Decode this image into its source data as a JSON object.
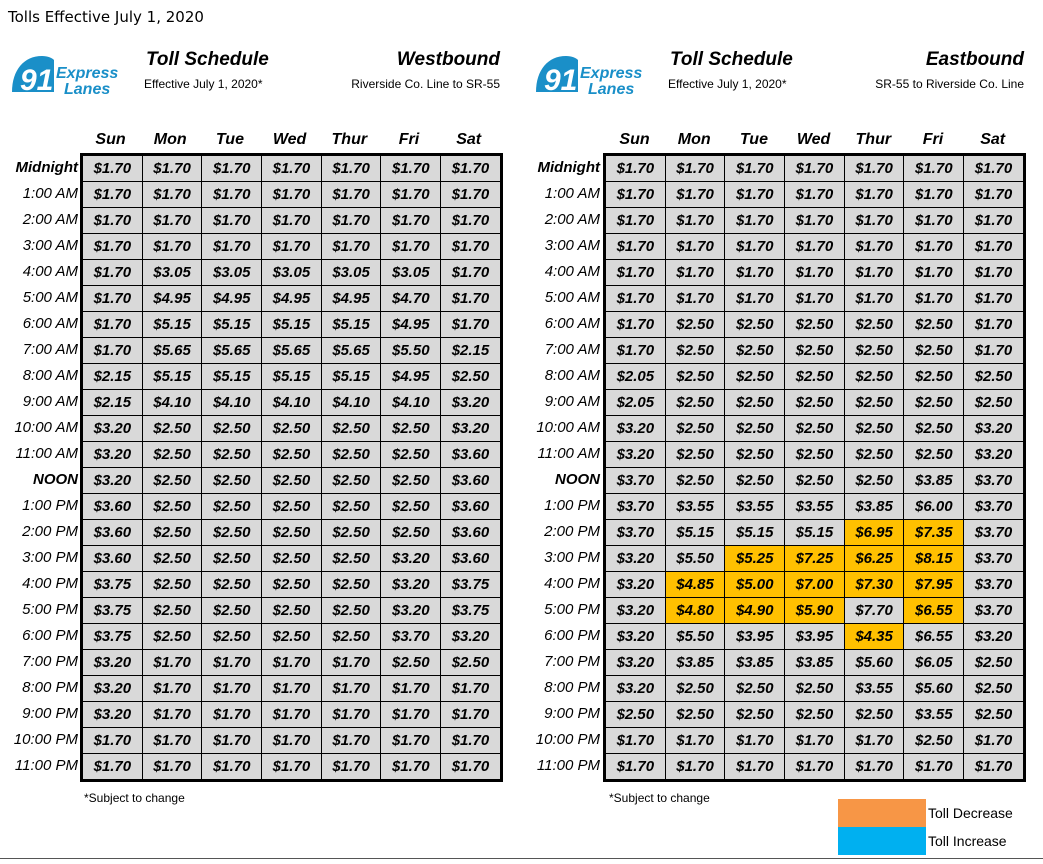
{
  "page_title": "Tolls Effective July 1, 2020",
  "logo": {
    "number": "91",
    "line1": "Express",
    "line2": "Lanes"
  },
  "days": [
    "Sun",
    "Mon",
    "Tue",
    "Wed",
    "Thur",
    "Fri",
    "Sat"
  ],
  "times": [
    "Midnight",
    "1:00 AM",
    "2:00 AM",
    "3:00 AM",
    "4:00 AM",
    "5:00 AM",
    "6:00 AM",
    "7:00 AM",
    "8:00 AM",
    "9:00 AM",
    "10:00 AM",
    "11:00 AM",
    "NOON",
    "1:00 PM",
    "2:00 PM",
    "3:00 PM",
    "4:00 PM",
    "5:00 PM",
    "6:00 PM",
    "7:00 PM",
    "8:00 PM",
    "9:00 PM",
    "10:00 PM",
    "11:00 PM"
  ],
  "westbound": {
    "schedule_title": "Toll Schedule",
    "effective": "Effective July 1, 2020*",
    "direction": "Westbound",
    "route": "Riverside Co. Line to SR-55",
    "note": "*Subject to change",
    "rows": [
      [
        "$1.70",
        "$1.70",
        "$1.70",
        "$1.70",
        "$1.70",
        "$1.70",
        "$1.70"
      ],
      [
        "$1.70",
        "$1.70",
        "$1.70",
        "$1.70",
        "$1.70",
        "$1.70",
        "$1.70"
      ],
      [
        "$1.70",
        "$1.70",
        "$1.70",
        "$1.70",
        "$1.70",
        "$1.70",
        "$1.70"
      ],
      [
        "$1.70",
        "$1.70",
        "$1.70",
        "$1.70",
        "$1.70",
        "$1.70",
        "$1.70"
      ],
      [
        "$1.70",
        "$3.05",
        "$3.05",
        "$3.05",
        "$3.05",
        "$3.05",
        "$1.70"
      ],
      [
        "$1.70",
        "$4.95",
        "$4.95",
        "$4.95",
        "$4.95",
        "$4.70",
        "$1.70"
      ],
      [
        "$1.70",
        "$5.15",
        "$5.15",
        "$5.15",
        "$5.15",
        "$4.95",
        "$1.70"
      ],
      [
        "$1.70",
        "$5.65",
        "$5.65",
        "$5.65",
        "$5.65",
        "$5.50",
        "$2.15"
      ],
      [
        "$2.15",
        "$5.15",
        "$5.15",
        "$5.15",
        "$5.15",
        "$4.95",
        "$2.50"
      ],
      [
        "$2.15",
        "$4.10",
        "$4.10",
        "$4.10",
        "$4.10",
        "$4.10",
        "$3.20"
      ],
      [
        "$3.20",
        "$2.50",
        "$2.50",
        "$2.50",
        "$2.50",
        "$2.50",
        "$3.20"
      ],
      [
        "$3.20",
        "$2.50",
        "$2.50",
        "$2.50",
        "$2.50",
        "$2.50",
        "$3.60"
      ],
      [
        "$3.20",
        "$2.50",
        "$2.50",
        "$2.50",
        "$2.50",
        "$2.50",
        "$3.60"
      ],
      [
        "$3.60",
        "$2.50",
        "$2.50",
        "$2.50",
        "$2.50",
        "$2.50",
        "$3.60"
      ],
      [
        "$3.60",
        "$2.50",
        "$2.50",
        "$2.50",
        "$2.50",
        "$2.50",
        "$3.60"
      ],
      [
        "$3.60",
        "$2.50",
        "$2.50",
        "$2.50",
        "$2.50",
        "$3.20",
        "$3.60"
      ],
      [
        "$3.75",
        "$2.50",
        "$2.50",
        "$2.50",
        "$2.50",
        "$3.20",
        "$3.75"
      ],
      [
        "$3.75",
        "$2.50",
        "$2.50",
        "$2.50",
        "$2.50",
        "$3.20",
        "$3.75"
      ],
      [
        "$3.75",
        "$2.50",
        "$2.50",
        "$2.50",
        "$2.50",
        "$3.70",
        "$3.20"
      ],
      [
        "$3.20",
        "$1.70",
        "$1.70",
        "$1.70",
        "$1.70",
        "$2.50",
        "$2.50"
      ],
      [
        "$3.20",
        "$1.70",
        "$1.70",
        "$1.70",
        "$1.70",
        "$1.70",
        "$1.70"
      ],
      [
        "$3.20",
        "$1.70",
        "$1.70",
        "$1.70",
        "$1.70",
        "$1.70",
        "$1.70"
      ],
      [
        "$1.70",
        "$1.70",
        "$1.70",
        "$1.70",
        "$1.70",
        "$1.70",
        "$1.70"
      ],
      [
        "$1.70",
        "$1.70",
        "$1.70",
        "$1.70",
        "$1.70",
        "$1.70",
        "$1.70"
      ]
    ],
    "highlight": []
  },
  "eastbound": {
    "schedule_title": "Toll Schedule",
    "effective": "Effective July 1, 2020*",
    "direction": "Eastbound",
    "route": "SR-55 to Riverside Co. Line",
    "note": "*Subject to change",
    "rows": [
      [
        "$1.70",
        "$1.70",
        "$1.70",
        "$1.70",
        "$1.70",
        "$1.70",
        "$1.70"
      ],
      [
        "$1.70",
        "$1.70",
        "$1.70",
        "$1.70",
        "$1.70",
        "$1.70",
        "$1.70"
      ],
      [
        "$1.70",
        "$1.70",
        "$1.70",
        "$1.70",
        "$1.70",
        "$1.70",
        "$1.70"
      ],
      [
        "$1.70",
        "$1.70",
        "$1.70",
        "$1.70",
        "$1.70",
        "$1.70",
        "$1.70"
      ],
      [
        "$1.70",
        "$1.70",
        "$1.70",
        "$1.70",
        "$1.70",
        "$1.70",
        "$1.70"
      ],
      [
        "$1.70",
        "$1.70",
        "$1.70",
        "$1.70",
        "$1.70",
        "$1.70",
        "$1.70"
      ],
      [
        "$1.70",
        "$2.50",
        "$2.50",
        "$2.50",
        "$2.50",
        "$2.50",
        "$1.70"
      ],
      [
        "$1.70",
        "$2.50",
        "$2.50",
        "$2.50",
        "$2.50",
        "$2.50",
        "$1.70"
      ],
      [
        "$2.05",
        "$2.50",
        "$2.50",
        "$2.50",
        "$2.50",
        "$2.50",
        "$2.50"
      ],
      [
        "$2.05",
        "$2.50",
        "$2.50",
        "$2.50",
        "$2.50",
        "$2.50",
        "$2.50"
      ],
      [
        "$3.20",
        "$2.50",
        "$2.50",
        "$2.50",
        "$2.50",
        "$2.50",
        "$3.20"
      ],
      [
        "$3.20",
        "$2.50",
        "$2.50",
        "$2.50",
        "$2.50",
        "$2.50",
        "$3.20"
      ],
      [
        "$3.70",
        "$2.50",
        "$2.50",
        "$2.50",
        "$2.50",
        "$3.85",
        "$3.70"
      ],
      [
        "$3.70",
        "$3.55",
        "$3.55",
        "$3.55",
        "$3.85",
        "$6.00",
        "$3.70"
      ],
      [
        "$3.70",
        "$5.15",
        "$5.15",
        "$5.15",
        "$6.95",
        "$7.35",
        "$3.70"
      ],
      [
        "$3.20",
        "$5.50",
        "$5.25",
        "$7.25",
        "$6.25",
        "$8.15",
        "$3.70"
      ],
      [
        "$3.20",
        "$4.85",
        "$5.00",
        "$7.00",
        "$7.30",
        "$7.95",
        "$3.70"
      ],
      [
        "$3.20",
        "$4.80",
        "$4.90",
        "$5.90",
        "$7.70",
        "$6.55",
        "$3.70"
      ],
      [
        "$3.20",
        "$5.50",
        "$3.95",
        "$3.95",
        "$4.35",
        "$6.55",
        "$3.20"
      ],
      [
        "$3.20",
        "$3.85",
        "$3.85",
        "$3.85",
        "$5.60",
        "$6.05",
        "$2.50"
      ],
      [
        "$3.20",
        "$2.50",
        "$2.50",
        "$2.50",
        "$3.55",
        "$5.60",
        "$2.50"
      ],
      [
        "$2.50",
        "$2.50",
        "$2.50",
        "$2.50",
        "$2.50",
        "$3.55",
        "$2.50"
      ],
      [
        "$1.70",
        "$1.70",
        "$1.70",
        "$1.70",
        "$1.70",
        "$2.50",
        "$1.70"
      ],
      [
        "$1.70",
        "$1.70",
        "$1.70",
        "$1.70",
        "$1.70",
        "$1.70",
        "$1.70"
      ]
    ],
    "highlight": [
      [
        14,
        4
      ],
      [
        14,
        5
      ],
      [
        15,
        2
      ],
      [
        15,
        3
      ],
      [
        15,
        4
      ],
      [
        15,
        5
      ],
      [
        16,
        1
      ],
      [
        16,
        2
      ],
      [
        16,
        3
      ],
      [
        16,
        4
      ],
      [
        16,
        5
      ],
      [
        17,
        1
      ],
      [
        17,
        2
      ],
      [
        17,
        3
      ],
      [
        17,
        5
      ],
      [
        18,
        4
      ]
    ]
  },
  "legend": {
    "items": [
      {
        "label": "Toll Decrease",
        "color": "#f79646"
      },
      {
        "label": "Toll Increase",
        "color": "#00b0f0"
      }
    ]
  },
  "colors": {
    "cell_bg": "#d9d9d9",
    "highlight": "#ffc000"
  }
}
